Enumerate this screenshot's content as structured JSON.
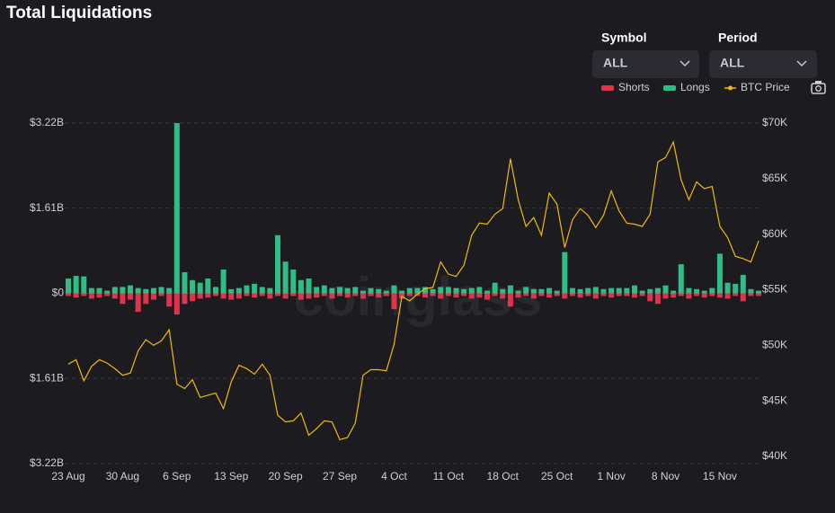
{
  "title": "Total Liquidations",
  "controls": {
    "symbol_label": "Symbol",
    "symbol_value": "ALL",
    "period_label": "Period",
    "period_value": "ALL"
  },
  "watermark": "coinglass",
  "chart_data": {
    "type": "bar",
    "categories": [
      "23 Aug",
      null,
      null,
      null,
      null,
      null,
      null,
      "30 Aug",
      null,
      null,
      null,
      null,
      null,
      null,
      "6 Sep",
      null,
      null,
      null,
      null,
      null,
      null,
      "13 Sep",
      null,
      null,
      null,
      null,
      null,
      null,
      "20 Sep",
      null,
      null,
      null,
      null,
      null,
      null,
      "27 Sep",
      null,
      null,
      null,
      null,
      null,
      null,
      "4 Oct",
      null,
      null,
      null,
      null,
      null,
      null,
      "11 Oct",
      null,
      null,
      null,
      null,
      null,
      null,
      "18 Oct",
      null,
      null,
      null,
      null,
      null,
      null,
      "25 Oct",
      null,
      null,
      null,
      null,
      null,
      null,
      "1 Nov",
      null,
      null,
      null,
      null,
      null,
      null,
      "8 Nov",
      null,
      null,
      null,
      null,
      null,
      null,
      "15 Nov",
      null,
      null,
      null,
      null,
      null
    ],
    "series": [
      {
        "name": "Shorts",
        "color": "#e0344d",
        "values": [
          -0.05,
          -0.08,
          -0.05,
          -0.1,
          -0.08,
          -0.05,
          -0.1,
          -0.2,
          -0.12,
          -0.35,
          -0.2,
          -0.12,
          -0.05,
          -0.25,
          -0.4,
          -0.2,
          -0.15,
          -0.1,
          -0.08,
          -0.05,
          -0.1,
          -0.12,
          -0.1,
          -0.05,
          -0.08,
          -0.05,
          -0.1,
          -0.05,
          -0.1,
          -0.05,
          -0.12,
          -0.1,
          -0.08,
          -0.05,
          -0.1,
          -0.05,
          -0.08,
          -0.05,
          -0.1,
          -0.05,
          -0.08,
          -0.05,
          -0.3,
          -0.1,
          -0.05,
          -0.05,
          -0.08,
          -0.05,
          -0.1,
          -0.05,
          -0.08,
          -0.05,
          -0.1,
          -0.08,
          -0.12,
          -0.05,
          -0.1,
          -0.25,
          -0.08,
          -0.05,
          -0.1,
          -0.05,
          -0.08,
          -0.05,
          -0.1,
          -0.05,
          -0.08,
          -0.05,
          -0.1,
          -0.05,
          -0.08,
          -0.05,
          -0.05,
          -0.08,
          -0.05,
          -0.15,
          -0.2,
          -0.1,
          -0.08,
          -0.05,
          -0.1,
          -0.05,
          -0.08,
          -0.05,
          -0.08,
          -0.1,
          -0.05,
          -0.15,
          -0.05,
          -0.05
        ]
      },
      {
        "name": "Longs",
        "color": "#2ebd85",
        "values": [
          0.28,
          0.33,
          0.32,
          0.1,
          0.1,
          0.05,
          0.12,
          0.12,
          0.15,
          0.1,
          0.08,
          0.1,
          0.12,
          0.1,
          3.22,
          0.4,
          0.25,
          0.2,
          0.28,
          0.12,
          0.45,
          0.08,
          0.1,
          0.15,
          0.18,
          0.12,
          0.1,
          1.1,
          0.6,
          0.45,
          0.25,
          0.28,
          0.12,
          0.15,
          0.1,
          0.12,
          0.1,
          0.12,
          0.05,
          0.1,
          0.08,
          0.05,
          0.15,
          0.05,
          0.1,
          0.1,
          0.12,
          0.08,
          0.12,
          0.12,
          0.1,
          0.08,
          0.1,
          0.12,
          0.05,
          0.2,
          0.08,
          0.15,
          0.05,
          0.12,
          0.08,
          0.08,
          0.1,
          0.05,
          0.78,
          0.1,
          0.08,
          0.1,
          0.12,
          0.08,
          0.1,
          0.1,
          0.1,
          0.15,
          0.05,
          0.08,
          0.1,
          0.15,
          0.05,
          0.55,
          0.1,
          0.08,
          0.05,
          0.1,
          0.75,
          0.2,
          0.18,
          0.35,
          0.08,
          0.05
        ]
      },
      {
        "name": "BTC Price",
        "color": "#f0b90b",
        "axis": "y2",
        "type": "line",
        "values": [
          48.3,
          48.7,
          46.8,
          48.1,
          48.7,
          48.4,
          47.9,
          47.3,
          47.5,
          49.5,
          50.5,
          50,
          50.4,
          51.4,
          46.5,
          46.1,
          46.9,
          45.3,
          45.5,
          45.7,
          44.3,
          46.7,
          48.2,
          47.9,
          47.4,
          48.3,
          47.3,
          43.7,
          43.1,
          43.2,
          43.9,
          41.9,
          42.5,
          43.2,
          43.1,
          41.5,
          41.7,
          43,
          47.3,
          47.8,
          47.8,
          47.7,
          50.1,
          54.4,
          54,
          54.6,
          55.1,
          55.2,
          57.5,
          56.4,
          56.2,
          57.2,
          59.9,
          61,
          60.9,
          61.8,
          62.3,
          66.8,
          63.1,
          60.7,
          61.5,
          59.9,
          63.7,
          62.7,
          58.8,
          61.3,
          62.3,
          61.7,
          60.6,
          61.7,
          63.9,
          62.1,
          61,
          60.9,
          60.7,
          61.8,
          66.5,
          66.9,
          68.3,
          64.9,
          63.1,
          64.7,
          64.1,
          64.3,
          60.7,
          59.7,
          58,
          57.8,
          57.5,
          59.4
        ]
      }
    ],
    "ylim": [
      -3.22,
      3.22
    ],
    "yticks": [
      {
        "value": -3.22,
        "label": "$3.22B"
      },
      {
        "value": -1.61,
        "label": "$1.61B"
      },
      {
        "value": 0,
        "label": "$0"
      },
      {
        "value": 1.61,
        "label": "$1.61B"
      },
      {
        "value": 3.22,
        "label": "$3.22B"
      }
    ],
    "y2lim": [
      39.35,
      70
    ],
    "y2ticks": [
      {
        "value": 40,
        "label": "$40K"
      },
      {
        "value": 45,
        "label": "$45K"
      },
      {
        "value": 50,
        "label": "$50K"
      },
      {
        "value": 55,
        "label": "$55K"
      },
      {
        "value": 60,
        "label": "$60K"
      },
      {
        "value": 65,
        "label": "$65K"
      },
      {
        "value": 70,
        "label": "$70K"
      }
    ],
    "grid": true
  }
}
